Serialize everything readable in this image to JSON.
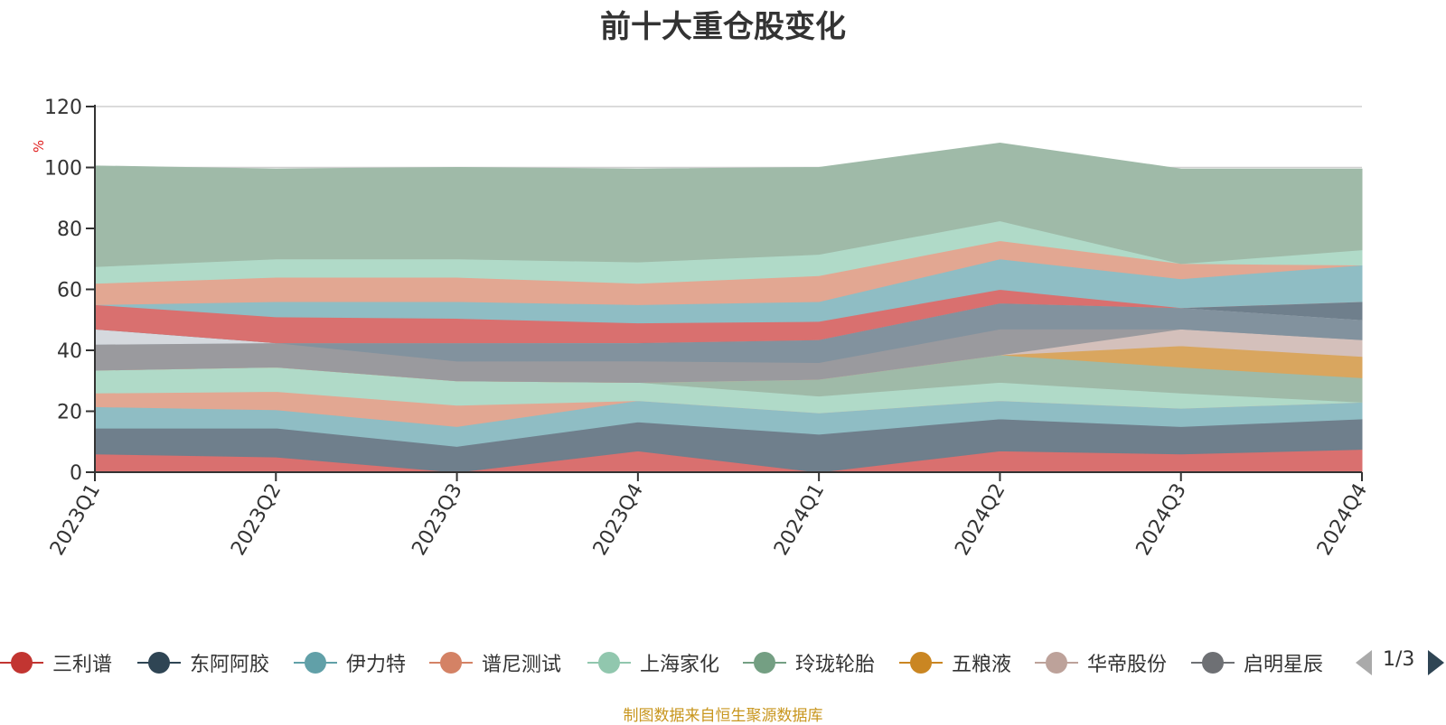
{
  "chart_data": {
    "type": "area",
    "stacked": true,
    "title": "前十大重仓股变化",
    "ylabel": "%",
    "ylim": [
      0,
      120
    ],
    "yticks": [
      0,
      20,
      40,
      60,
      80,
      100,
      120
    ],
    "categories": [
      "2023Q1",
      "2023Q2",
      "2023Q3",
      "2023Q4",
      "2024Q1",
      "2024Q2",
      "2024Q3",
      "2024Q4"
    ],
    "grid": true,
    "legend_position": "bottom",
    "series": [
      {
        "name": "三利谱",
        "color": "#d9706f",
        "values": [
          6,
          5,
          0,
          7,
          0,
          7,
          6,
          7.5
        ]
      },
      {
        "name": "东阿阿胶",
        "color": "#6f7f8c",
        "values": [
          8.5,
          9.5,
          8.5,
          9.5,
          12.5,
          10.5,
          9,
          10
        ]
      },
      {
        "name": "伊力特",
        "color": "#8fbdc4",
        "values": [
          7,
          6,
          6.5,
          7,
          7,
          6,
          6,
          5.5
        ]
      },
      {
        "name": "谱尼测试",
        "color": "#e2a792",
        "values": [
          4.5,
          6,
          7,
          0,
          0,
          0,
          0,
          0
        ]
      },
      {
        "name": "上海家化",
        "color": "#b0dac8",
        "values": [
          7.5,
          8,
          8,
          6,
          5.5,
          6,
          5,
          0
        ]
      },
      {
        "name": "玲珑轮胎",
        "color": "#9fbaa8",
        "values": [
          0,
          0,
          0,
          0,
          5.5,
          9,
          8.5,
          8
        ]
      },
      {
        "name": "五粮液",
        "color": "#d9a65f",
        "values": [
          0,
          0,
          0,
          0,
          0,
          0,
          7,
          7
        ]
      },
      {
        "name": "华帝股份",
        "color": "#d4c0bb",
        "values": [
          0,
          0,
          0,
          0,
          0,
          0,
          5.5,
          5.5
        ]
      },
      {
        "name": "启明星辰",
        "color": "#9a9a9e",
        "values": [
          8.5,
          8,
          6.5,
          7,
          5.5,
          8.5,
          0,
          0
        ]
      },
      {
        "name": "",
        "color": "#82929e",
        "values": [
          0,
          0,
          6,
          6,
          7.5,
          8.5,
          7,
          6.5
        ]
      },
      {
        "name": "",
        "color": "#d5d9de",
        "values": [
          5,
          0,
          0,
          0,
          0,
          0,
          0,
          0
        ]
      },
      {
        "name": "",
        "color": "#6f7f8c",
        "values": [
          0,
          0,
          0,
          0,
          0,
          0,
          0,
          6
        ]
      },
      {
        "name": "",
        "color": "#d9706f",
        "values": [
          8,
          8.5,
          8,
          6.5,
          6,
          4.5,
          0,
          0
        ]
      },
      {
        "name": "",
        "color": "#8fbdc4",
        "values": [
          0,
          5,
          5.5,
          6,
          6.5,
          10,
          9.5,
          12
        ]
      },
      {
        "name": "",
        "color": "#e2a792",
        "values": [
          7,
          8,
          8,
          7,
          8.5,
          6,
          5,
          0
        ]
      },
      {
        "name": "",
        "color": "#b0dac8",
        "values": [
          5.5,
          6,
          6,
          7,
          7,
          6.5,
          0,
          5
        ]
      },
      {
        "name": "",
        "color": "#9fbaa8",
        "values": [
          33,
          29.5,
          30,
          30.5,
          28.5,
          25.5,
          31,
          26.5
        ]
      }
    ]
  },
  "legend": {
    "items": [
      {
        "label": "三利谱",
        "color": "#c23531"
      },
      {
        "label": "东阿阿胶",
        "color": "#2f4554"
      },
      {
        "label": "伊力特",
        "color": "#61a0a8"
      },
      {
        "label": "谱尼测试",
        "color": "#d48265"
      },
      {
        "label": "上海家化",
        "color": "#91c7ae"
      },
      {
        "label": "玲珑轮胎",
        "color": "#749f83"
      },
      {
        "label": "五粮液",
        "color": "#ca8622"
      },
      {
        "label": "华帝股份",
        "color": "#bda29a"
      },
      {
        "label": "启明星辰",
        "color": "#6e7074"
      }
    ],
    "page_text": "1/3"
  },
  "source_text": "制图数据来自恒生聚源数据库"
}
